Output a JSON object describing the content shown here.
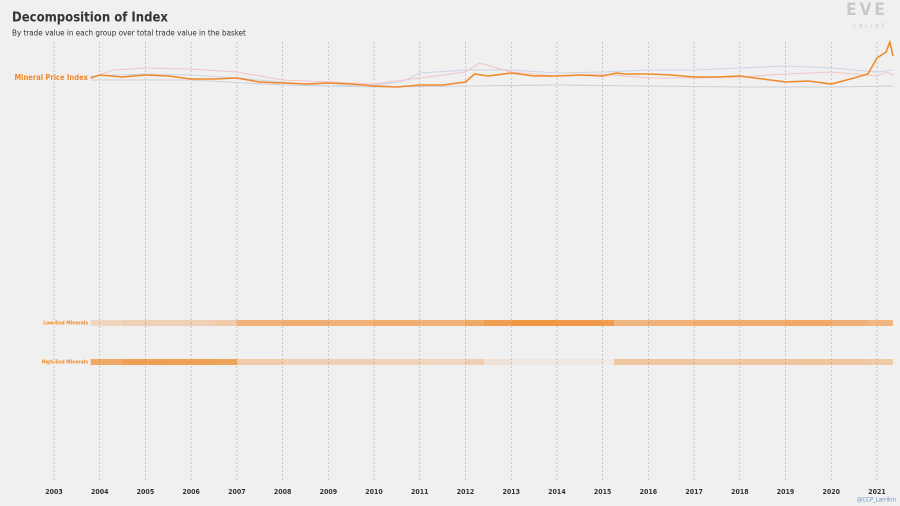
{
  "chart_data": [
    {
      "type": "line",
      "title": "Decomposition of Index",
      "subtitle": "By trade value in each group over total trade value in the basket",
      "xlim": [
        2003,
        2021.35
      ],
      "ylim": [
        0,
        50
      ],
      "series": [
        {
          "color": "#cfd0d6",
          "x": [
            2003.8,
            2006,
            2008,
            2010,
            2012,
            2014,
            2016,
            2018,
            2020,
            2021.35
          ],
          "values": [
            10,
            10,
            5,
            3,
            4,
            5,
            4,
            3,
            3,
            4
          ]
        },
        {
          "color": "#c9d6e4",
          "x": [
            2003.8,
            2005,
            2006,
            2007,
            2008,
            2009,
            2010,
            2010.6,
            2011,
            2012,
            2013,
            2014,
            2015,
            2016,
            2017,
            2018,
            2019,
            2020,
            2021,
            2021.35
          ],
          "values": [
            14,
            16,
            15,
            12,
            8,
            4,
            5,
            8,
            17,
            20,
            20,
            17,
            18,
            20,
            20,
            22,
            24,
            22,
            18,
            20
          ]
        },
        {
          "color": "#f2c4cb",
          "x": [
            2003.8,
            2004.3,
            2005,
            2006,
            2007,
            2008,
            2009,
            2010,
            2011,
            2012,
            2012.3,
            2013,
            2014,
            2015,
            2016,
            2017,
            2018,
            2019,
            2020,
            2021,
            2021.2,
            2021.35
          ],
          "values": [
            12,
            20,
            22,
            21,
            18,
            10,
            8,
            6,
            12,
            18,
            27,
            18,
            14,
            16,
            12,
            12,
            13,
            16,
            18,
            14,
            18,
            15
          ]
        },
        {
          "name": "Mineral Price Index",
          "color": "#f0892a",
          "x": [
            2003.8,
            2004,
            2004.5,
            2005,
            2005.5,
            2006,
            2006.5,
            2007,
            2007.5,
            2008,
            2008.5,
            2009,
            2009.5,
            2010,
            2010.5,
            2011,
            2011.5,
            2012,
            2012.2,
            2012.5,
            2013,
            2013.5,
            2014,
            2014.5,
            2015,
            2015.3,
            2015.5,
            2016,
            2016.5,
            2017,
            2017.5,
            2018,
            2018.5,
            2019,
            2019.5,
            2020,
            2020.5,
            2020.8,
            2021,
            2021.2,
            2021.28,
            2021.35
          ],
          "values": [
            12,
            15,
            13,
            15,
            14,
            11,
            11,
            12,
            8,
            7,
            6,
            7,
            6,
            4,
            3,
            5,
            5,
            8,
            16,
            14,
            17,
            14,
            14,
            15,
            14,
            17,
            16,
            16,
            15,
            13,
            13,
            14,
            11,
            8,
            9,
            6,
            12,
            16,
            32,
            38,
            48,
            34
          ]
        }
      ]
    },
    {
      "type": "heatmap",
      "edges": [
        2003.8,
        2004.5,
        2005.5,
        2006.5,
        2007,
        2008,
        2009,
        2010,
        2011,
        2012,
        2012.4,
        2013,
        2014,
        2015,
        2015.25,
        2016,
        2017,
        2018,
        2019,
        2020,
        2020.8,
        2021.35
      ],
      "color": "#f0892a",
      "rows": [
        {
          "name": "Low-End Minerals",
          "values": [
            25,
            30,
            30,
            35,
            60,
            65,
            60,
            65,
            60,
            70,
            80,
            88,
            85,
            80,
            55,
            60,
            65,
            65,
            70,
            62,
            55
          ]
        },
        {
          "name": "High-End Minerals",
          "values": [
            70,
            80,
            78,
            75,
            35,
            30,
            30,
            28,
            25,
            30,
            12,
            8,
            8,
            5,
            40,
            40,
            38,
            40,
            42,
            40,
            38
          ]
        }
      ],
      "xlim": [
        2003,
        2021.35
      ],
      "xticks": [
        2003,
        2004,
        2005,
        2006,
        2007,
        2008,
        2009,
        2010,
        2011,
        2012,
        2013,
        2014,
        2015,
        2016,
        2017,
        2018,
        2019,
        2020,
        2021
      ]
    }
  ],
  "logo": {
    "main": "EVE",
    "sub": "ONLINE"
  },
  "credit": "@CCP_Larrikin"
}
